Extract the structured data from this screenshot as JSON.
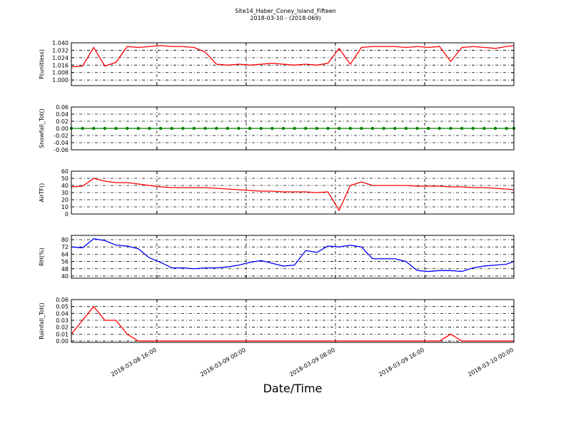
{
  "chart_data": {
    "type": "line",
    "title": "Site14_Haber_Coney_Island_Fifteen",
    "subtitle": "2018-03-10 - (2018-069)",
    "xlabel": "Date/Time",
    "grid": true,
    "x": [
      "2018-03-08 08:20",
      "2018-03-08 09:20",
      "2018-03-08 10:20",
      "2018-03-08 11:20",
      "2018-03-08 12:20",
      "2018-03-08 13:20",
      "2018-03-08 14:20",
      "2018-03-08 15:20",
      "2018-03-08 16:20",
      "2018-03-08 17:20",
      "2018-03-08 18:20",
      "2018-03-08 19:20",
      "2018-03-08 20:20",
      "2018-03-08 21:20",
      "2018-03-08 22:20",
      "2018-03-08 23:20",
      "2018-03-09 00:20",
      "2018-03-09 01:20",
      "2018-03-09 02:20",
      "2018-03-09 03:20",
      "2018-03-09 04:20",
      "2018-03-09 05:20",
      "2018-03-09 06:20",
      "2018-03-09 07:20",
      "2018-03-09 08:20",
      "2018-03-09 09:20",
      "2018-03-09 10:20",
      "2018-03-09 11:20",
      "2018-03-09 12:20",
      "2018-03-09 13:20",
      "2018-03-09 14:20",
      "2018-03-09 15:20",
      "2018-03-09 16:20",
      "2018-03-09 17:20",
      "2018-03-09 18:20",
      "2018-03-09 19:20",
      "2018-03-09 20:20",
      "2018-03-09 21:20",
      "2018-03-09 22:20",
      "2018-03-09 23:20",
      "2018-03-10 00:00"
    ],
    "xlim": [
      "2018-03-08 08:20",
      "2018-03-10 00:00"
    ],
    "xticks": [
      {
        "value": "2018-03-08 16:00",
        "label": "2018-03-08 16:00"
      },
      {
        "value": "2018-03-09 00:00",
        "label": "2018-03-09 00:00"
      },
      {
        "value": "2018-03-09 08:00",
        "label": "2018-03-09 08:00"
      },
      {
        "value": "2018-03-09 16:00",
        "label": "2018-03-09 16:00"
      },
      {
        "value": "2018-03-10 00:00",
        "label": "2018-03-10 00:00"
      }
    ],
    "panels": [
      {
        "ylabel": "P(unitless)",
        "ylim": [
          0.994,
          1.04
        ],
        "yticks": [
          {
            "value": 1.0,
            "label": "1.000"
          },
          {
            "value": 1.008,
            "label": "1.008"
          },
          {
            "value": 1.016,
            "label": "1.016"
          },
          {
            "value": 1.024,
            "label": "1.024"
          },
          {
            "value": 1.032,
            "label": "1.032"
          },
          {
            "value": 1.04,
            "label": "1.040"
          }
        ],
        "series": [
          {
            "color": "#ff0000",
            "values": [
              1.014,
              1.015,
              1.035,
              1.015,
              1.019,
              1.036,
              1.035,
              1.036,
              1.037,
              1.036,
              1.036,
              1.035,
              1.03,
              1.017,
              1.016,
              1.017,
              1.016,
              1.017,
              1.018,
              1.017,
              1.016,
              1.017,
              1.016,
              1.018,
              1.034,
              1.017,
              1.035,
              1.036,
              1.036,
              1.036,
              1.035,
              1.036,
              1.035,
              1.036,
              1.02,
              1.035,
              1.036,
              1.035,
              1.034,
              1.036,
              1.037
            ]
          }
        ]
      },
      {
        "ylabel": "Snowfall_Tot()",
        "ylim": [
          -0.06,
          0.06
        ],
        "yticks": [
          -0.06,
          -0.04,
          -0.02,
          {
            "value": 0,
            "label": "0.00"
          },
          0.02,
          0.04,
          0.06
        ],
        "series": [
          {
            "color": "#008000",
            "marker": true,
            "values": [
              0,
              0,
              0,
              0,
              0,
              0,
              0,
              0,
              0,
              0,
              0,
              0,
              0,
              0,
              0,
              0,
              0,
              0,
              0,
              0,
              0,
              0,
              0,
              0,
              0,
              0,
              0,
              0,
              0,
              0,
              0,
              0,
              0,
              0,
              0,
              0,
              0,
              0,
              0,
              0,
              0
            ]
          }
        ]
      },
      {
        "ylabel": "AirTF()",
        "ylim": [
          0,
          60
        ],
        "yticks": [
          0,
          10,
          20,
          30,
          40,
          50,
          60
        ],
        "series": [
          {
            "color": "#ff0000",
            "values": [
              38,
              39,
              50,
              46,
              44,
              44,
              42,
              40,
              38,
              37,
              37,
              37,
              37,
              36,
              35,
              34,
              33,
              32,
              32,
              31,
              31,
              31,
              30,
              31,
              5,
              40,
              45,
              40,
              40,
              40,
              40,
              39,
              39,
              39,
              38,
              38,
              37,
              37,
              36,
              35,
              34
            ]
          }
        ]
      },
      {
        "ylabel": "RH(%)",
        "ylim": [
          37.6,
          84.7
        ],
        "yticks": [
          40,
          48,
          56,
          64,
          72,
          80
        ],
        "series": [
          {
            "color": "#0000ff",
            "values": [
              72,
              71,
              81,
              79,
              74,
              73,
              70,
              60,
              55,
              49,
              49,
              48,
              49,
              49,
              50,
              52,
              55,
              57,
              54,
              51,
              52,
              68,
              66,
              73,
              72,
              74,
              72,
              59,
              59,
              59,
              56,
              46,
              45,
              46,
              46,
              45,
              49,
              51,
              52,
              53,
              56
            ]
          }
        ]
      },
      {
        "ylabel": "Rainfall_Tot()",
        "ylim": [
          -0.002,
          0.06
        ],
        "yticks": [
          {
            "value": 0,
            "label": "0.00"
          },
          0.01,
          0.02,
          0.03,
          0.04,
          0.05,
          0.06
        ],
        "series": [
          {
            "color": "#ff0000",
            "values": [
              0.01,
              0.03,
              0.05,
              0.03,
              0.03,
              0.01,
              0,
              0,
              0,
              0,
              0,
              0,
              0,
              0,
              0,
              0,
              0,
              0,
              0,
              0,
              0,
              0,
              0,
              0,
              0,
              0,
              0,
              0,
              0,
              0,
              0,
              0,
              0,
              0,
              0.01,
              0,
              0,
              0,
              0,
              0,
              0
            ]
          }
        ]
      }
    ]
  }
}
